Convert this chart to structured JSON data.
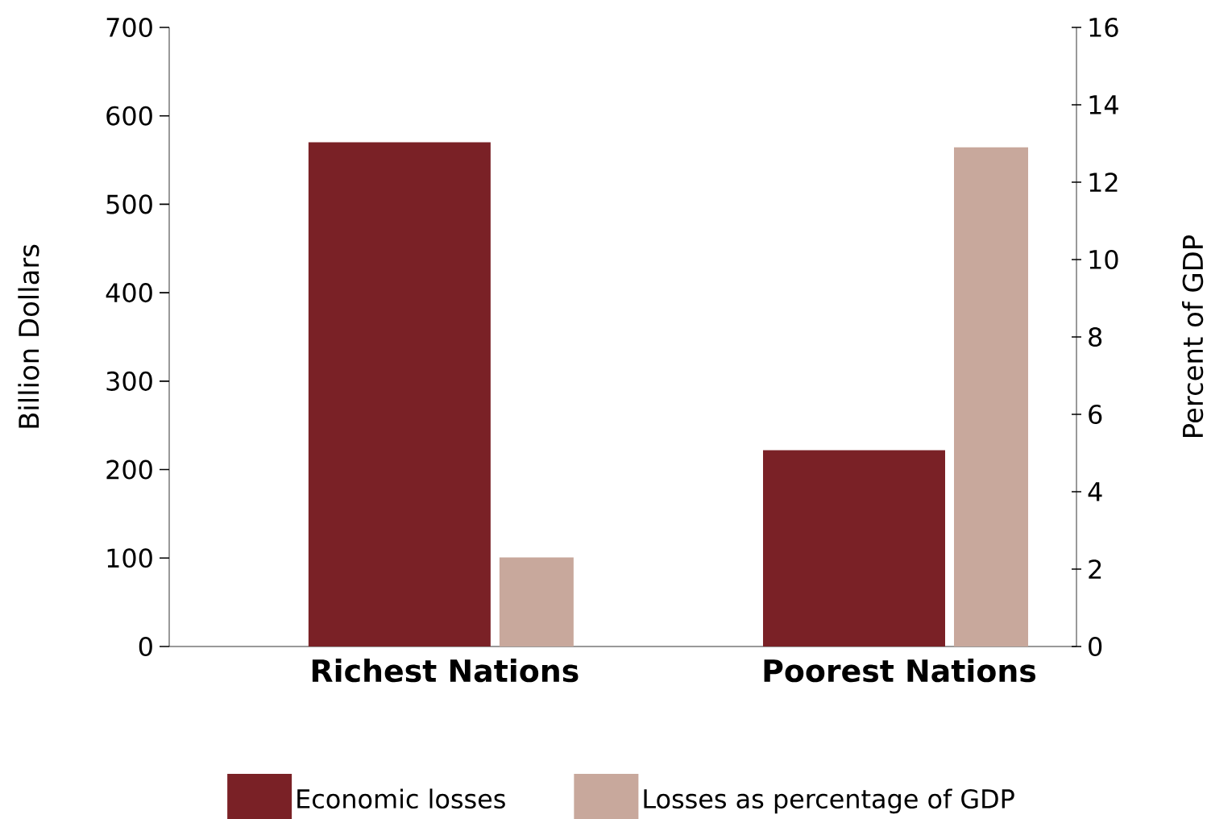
{
  "chart_data": {
    "type": "bar",
    "categories": [
      "Richest Nations",
      "Poorest Nations"
    ],
    "series": [
      {
        "name": "Economic losses",
        "color": "#7a2126",
        "values": [
          570,
          222
        ]
      },
      {
        "name": "Losses as percentage of GDP",
        "color": "#c8a89c",
        "values": [
          2.3,
          12.9
        ],
        "axis": "y2"
      }
    ],
    "ylabel": "Billion Dollars",
    "y2label": "Percent of GDP",
    "ylim": [
      0,
      700
    ],
    "yticks": [
      0,
      100,
      200,
      300,
      400,
      500,
      600,
      700
    ],
    "y2lim": [
      0,
      16
    ],
    "y2ticks": [
      0,
      2,
      4,
      6,
      8,
      10,
      12,
      14,
      16
    ],
    "legend": "bottom"
  }
}
